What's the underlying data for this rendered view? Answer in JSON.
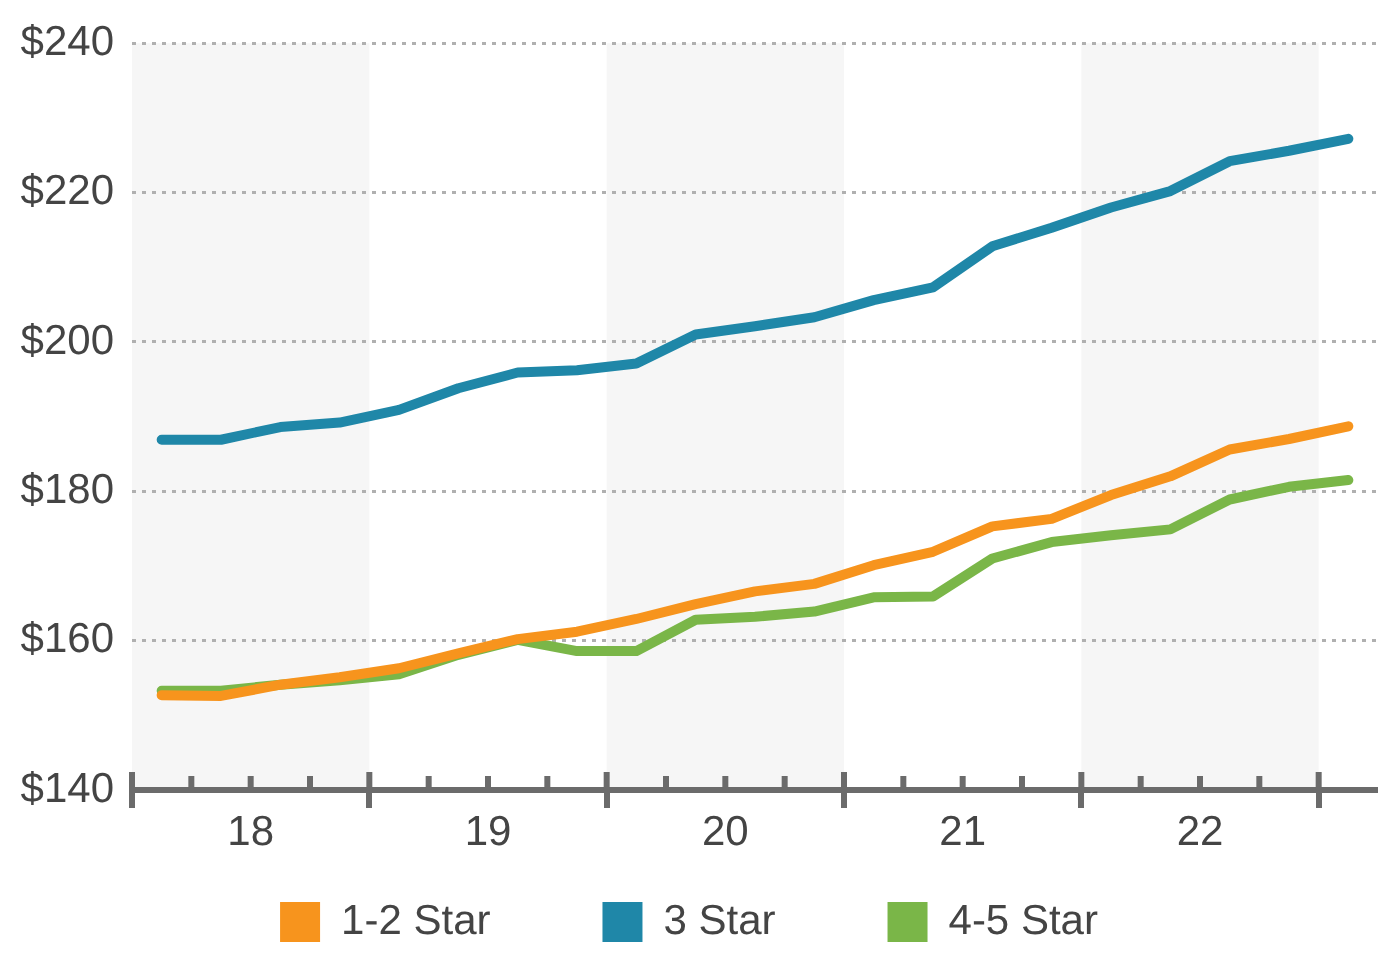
{
  "chart_data": {
    "type": "line",
    "x": [
      18.125,
      18.375,
      18.625,
      18.875,
      19.125,
      19.375,
      19.625,
      19.875,
      20.125,
      20.375,
      20.625,
      20.875,
      21.125,
      21.375,
      21.625,
      21.875,
      22.125,
      22.375,
      22.625,
      22.875,
      23.125
    ],
    "series": [
      {
        "name": "1-2 Star",
        "color": "#f7941d",
        "values": [
          152.7,
          152.6,
          154.1,
          155.1,
          156.3,
          158.3,
          160.2,
          161.2,
          162.9,
          164.9,
          166.6,
          167.6,
          170.1,
          171.9,
          175.3,
          176.3,
          179.5,
          182.0,
          185.6,
          187.0,
          188.7
        ]
      },
      {
        "name": "3 Star",
        "color": "#1f87a8",
        "values": [
          186.9,
          186.9,
          188.6,
          189.2,
          190.9,
          193.8,
          195.9,
          196.2,
          197.1,
          201.0,
          202.1,
          203.3,
          205.6,
          207.3,
          212.8,
          215.3,
          218.0,
          220.2,
          224.2,
          225.6,
          227.2
        ]
      },
      {
        "name": "4-5 Star",
        "color": "#7ab648",
        "values": [
          153.3,
          153.3,
          154.1,
          154.7,
          155.5,
          158.1,
          160.1,
          158.6,
          158.6,
          162.8,
          163.2,
          163.9,
          165.8,
          165.9,
          171.0,
          173.2,
          174.1,
          174.9,
          178.9,
          180.6,
          181.5
        ]
      }
    ],
    "xlim": [
      18,
      23.25
    ],
    "xticks": [
      {
        "value": 18,
        "label": null
      },
      {
        "value": 18.25,
        "label": null
      },
      {
        "value": 18.5,
        "label": "18"
      },
      {
        "value": 18.75,
        "label": null
      },
      {
        "value": 19,
        "label": null
      },
      {
        "value": 19.25,
        "label": null
      },
      {
        "value": 19.5,
        "label": "19"
      },
      {
        "value": 19.75,
        "label": null
      },
      {
        "value": 20,
        "label": null
      },
      {
        "value": 20.25,
        "label": null
      },
      {
        "value": 20.5,
        "label": "20"
      },
      {
        "value": 20.75,
        "label": null
      },
      {
        "value": 21,
        "label": null
      },
      {
        "value": 21.25,
        "label": null
      },
      {
        "value": 21.5,
        "label": "21"
      },
      {
        "value": 21.75,
        "label": null
      },
      {
        "value": 22,
        "label": null
      },
      {
        "value": 22.25,
        "label": null
      },
      {
        "value": 22.5,
        "label": "22"
      },
      {
        "value": 22.75,
        "label": null
      },
      {
        "value": 23,
        "label": null
      }
    ],
    "ylim": [
      140,
      240
    ],
    "yticks": [
      {
        "value": 140,
        "label": "$140"
      },
      {
        "value": 160,
        "label": "$160"
      },
      {
        "value": 180,
        "label": "$180"
      },
      {
        "value": 200,
        "label": "$200"
      },
      {
        "value": 220,
        "label": "$220"
      },
      {
        "value": 240,
        "label": "$240"
      }
    ],
    "grid": "y",
    "legend": "bottom",
    "bands": [
      {
        "axis": "x",
        "from": 18,
        "to": 19,
        "color": "#f6f6f6"
      },
      {
        "axis": "x",
        "from": 20,
        "to": 21,
        "color": "#f6f6f6"
      },
      {
        "axis": "x",
        "from": 22,
        "to": 23,
        "color": "#f6f6f6"
      }
    ]
  }
}
